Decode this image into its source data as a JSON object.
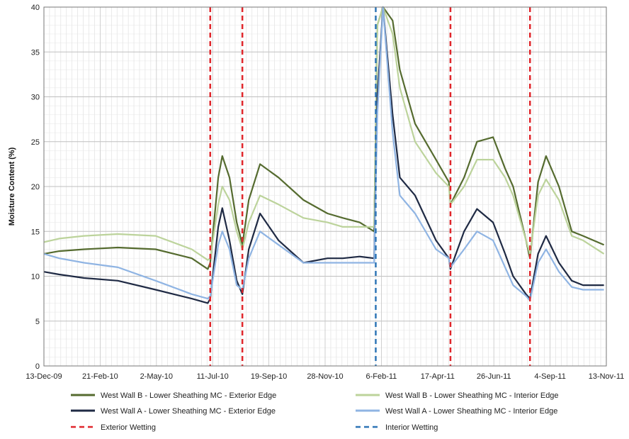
{
  "chart_data": {
    "type": "line",
    "ylabel": "Moisture Content (%)",
    "ylim": [
      0,
      40
    ],
    "y_ticks": [
      "0",
      "5",
      "10",
      "15",
      "20",
      "25",
      "30",
      "35",
      "40"
    ],
    "xlim": [
      "2009-12-13",
      "2011-11-13"
    ],
    "x_ticks": [
      {
        "date": "2009-12-13",
        "label": "13-Dec-09"
      },
      {
        "date": "2010-02-21",
        "label": "21-Feb-10"
      },
      {
        "date": "2010-05-02",
        "label": "2-May-10"
      },
      {
        "date": "2010-07-11",
        "label": "11-Jul-10"
      },
      {
        "date": "2010-09-19",
        "label": "19-Sep-10"
      },
      {
        "date": "2010-11-28",
        "label": "28-Nov-10"
      },
      {
        "date": "2011-02-06",
        "label": "6-Feb-11"
      },
      {
        "date": "2011-04-17",
        "label": "17-Apr-11"
      },
      {
        "date": "2011-06-26",
        "label": "26-Jun-11"
      },
      {
        "date": "2011-09-04",
        "label": "4-Sep-11"
      },
      {
        "date": "2011-11-13",
        "label": "13-Nov-11"
      }
    ],
    "grid": true,
    "legend_position": "bottom",
    "series": [
      {
        "name": "West Wall B - Lower Sheathing MC - Exterior Edge",
        "color": "#556b2f",
        "x": [
          "2009-12-13",
          "2010-01-01",
          "2010-02-01",
          "2010-03-15",
          "2010-05-01",
          "2010-06-15",
          "2010-07-05",
          "2010-07-08",
          "2010-07-18",
          "2010-07-23",
          "2010-08-01",
          "2010-08-10",
          "2010-08-17",
          "2010-08-25",
          "2010-09-08",
          "2010-10-01",
          "2010-11-01",
          "2010-12-01",
          "2010-12-20",
          "2011-01-10",
          "2011-01-28",
          "2011-02-01",
          "2011-02-08",
          "2011-02-20",
          "2011-03-01",
          "2011-03-20",
          "2011-04-15",
          "2011-05-01",
          "2011-05-03",
          "2011-05-20",
          "2011-06-05",
          "2011-06-25",
          "2011-07-10",
          "2011-07-20",
          "2011-08-05",
          "2011-08-10",
          "2011-08-20",
          "2011-08-30",
          "2011-09-15",
          "2011-10-01",
          "2011-10-15",
          "2011-11-10"
        ],
        "y": [
          12.5,
          12.8,
          13.0,
          13.2,
          13.0,
          12.0,
          10.8,
          11.5,
          21.0,
          23.4,
          21.0,
          16.0,
          13.5,
          18.5,
          22.5,
          21.0,
          18.5,
          17.0,
          16.5,
          16.0,
          15.0,
          38.0,
          40.0,
          38.5,
          33.0,
          27.0,
          23.0,
          20.5,
          18.0,
          21.0,
          25.0,
          25.5,
          22.0,
          20.0,
          14.0,
          12.0,
          20.5,
          23.4,
          20.0,
          15.0,
          14.5,
          13.5
        ]
      },
      {
        "name": "West Wall B - Lower Sheathing MC - Interior Edge",
        "color": "#bcd39b",
        "x": [
          "2009-12-13",
          "2010-01-01",
          "2010-02-01",
          "2010-03-15",
          "2010-05-01",
          "2010-06-15",
          "2010-07-05",
          "2010-07-08",
          "2010-07-18",
          "2010-07-23",
          "2010-08-01",
          "2010-08-10",
          "2010-08-17",
          "2010-08-25",
          "2010-09-08",
          "2010-10-01",
          "2010-11-01",
          "2010-12-01",
          "2010-12-20",
          "2011-01-10",
          "2011-01-28",
          "2011-02-01",
          "2011-02-08",
          "2011-02-20",
          "2011-03-01",
          "2011-03-20",
          "2011-04-15",
          "2011-05-01",
          "2011-05-03",
          "2011-05-20",
          "2011-06-05",
          "2011-06-25",
          "2011-07-10",
          "2011-07-20",
          "2011-08-05",
          "2011-08-10",
          "2011-08-20",
          "2011-08-30",
          "2011-09-15",
          "2011-10-01",
          "2011-10-15",
          "2011-11-10"
        ],
        "y": [
          13.8,
          14.2,
          14.5,
          14.7,
          14.5,
          13.0,
          11.8,
          12.0,
          18.0,
          20.0,
          18.5,
          15.0,
          13.0,
          16.0,
          19.0,
          18.0,
          16.5,
          16.0,
          15.5,
          15.5,
          15.5,
          38.0,
          40.0,
          37.0,
          31.0,
          25.0,
          21.5,
          20.0,
          18.0,
          20.0,
          23.0,
          23.0,
          21.0,
          19.0,
          14.0,
          12.5,
          19.0,
          20.8,
          18.5,
          14.5,
          14.0,
          12.5
        ]
      },
      {
        "name": "West Wall A - Lower Sheathing MC - Exterior Edge",
        "color": "#1f2a44",
        "x": [
          "2009-12-13",
          "2010-01-01",
          "2010-02-01",
          "2010-03-15",
          "2010-05-01",
          "2010-06-15",
          "2010-07-05",
          "2010-07-08",
          "2010-07-18",
          "2010-07-23",
          "2010-08-01",
          "2010-08-10",
          "2010-08-17",
          "2010-08-25",
          "2010-09-08",
          "2010-10-01",
          "2010-11-01",
          "2010-12-01",
          "2010-12-20",
          "2011-01-10",
          "2011-01-28",
          "2011-02-01",
          "2011-02-08",
          "2011-02-20",
          "2011-03-01",
          "2011-03-20",
          "2011-04-15",
          "2011-05-01",
          "2011-05-03",
          "2011-05-20",
          "2011-06-05",
          "2011-06-25",
          "2011-07-10",
          "2011-07-20",
          "2011-08-05",
          "2011-08-10",
          "2011-08-20",
          "2011-08-30",
          "2011-09-15",
          "2011-10-01",
          "2011-10-15",
          "2011-11-10"
        ],
        "y": [
          10.5,
          10.2,
          9.8,
          9.5,
          8.5,
          7.5,
          7.0,
          7.5,
          15.5,
          17.6,
          14.0,
          9.5,
          8.0,
          13.0,
          17.0,
          14.0,
          11.5,
          12.0,
          12.0,
          12.2,
          12.0,
          30.0,
          40.0,
          28.0,
          21.0,
          19.0,
          14.0,
          12.0,
          10.8,
          15.0,
          17.5,
          16.0,
          12.5,
          10.0,
          8.0,
          7.5,
          12.5,
          14.5,
          11.5,
          9.5,
          9.0,
          9.0
        ]
      },
      {
        "name": "West Wall A - Lower Sheathing MC - Interior Edge",
        "color": "#8fb4e3",
        "x": [
          "2009-12-13",
          "2010-01-01",
          "2010-02-01",
          "2010-03-15",
          "2010-05-01",
          "2010-06-15",
          "2010-07-05",
          "2010-07-08",
          "2010-07-18",
          "2010-07-23",
          "2010-08-01",
          "2010-08-10",
          "2010-08-17",
          "2010-08-25",
          "2010-09-08",
          "2010-10-01",
          "2010-11-01",
          "2010-12-01",
          "2010-12-20",
          "2011-01-10",
          "2011-01-28",
          "2011-02-01",
          "2011-02-08",
          "2011-02-20",
          "2011-03-01",
          "2011-03-20",
          "2011-04-15",
          "2011-05-01",
          "2011-05-03",
          "2011-05-20",
          "2011-06-05",
          "2011-06-25",
          "2011-07-10",
          "2011-07-20",
          "2011-08-05",
          "2011-08-10",
          "2011-08-20",
          "2011-08-30",
          "2011-09-15",
          "2011-10-01",
          "2011-10-15",
          "2011-11-10"
        ],
        "y": [
          12.5,
          12.0,
          11.5,
          11.0,
          9.5,
          8.0,
          7.5,
          7.8,
          13.5,
          15.0,
          13.0,
          9.0,
          8.5,
          12.0,
          15.0,
          13.5,
          11.5,
          11.5,
          11.5,
          11.5,
          11.5,
          28.0,
          40.0,
          26.0,
          19.0,
          17.0,
          13.0,
          12.0,
          11.0,
          13.0,
          15.0,
          14.0,
          11.0,
          9.0,
          7.8,
          7.3,
          11.5,
          13.0,
          10.5,
          8.8,
          8.5,
          8.5
        ]
      }
    ],
    "event_lines": [
      {
        "name": "Exterior Wetting",
        "color": "#e0262b",
        "dates": [
          "2010-07-08",
          "2010-08-17",
          "2011-05-03",
          "2011-08-10"
        ]
      },
      {
        "name": "Interior Wetting",
        "color": "#2e75b6",
        "dates": [
          "2011-01-30"
        ]
      }
    ]
  }
}
